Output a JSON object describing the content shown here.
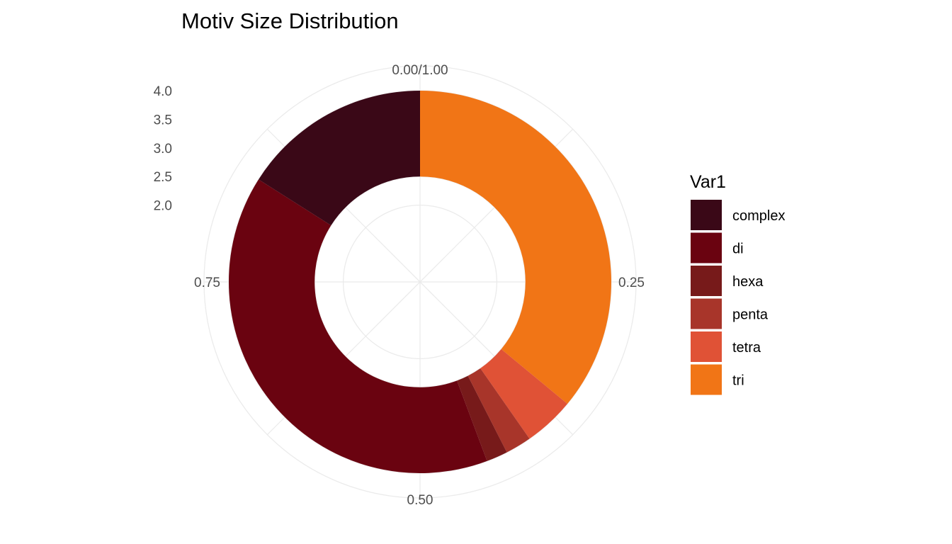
{
  "chart_data": {
    "type": "pie",
    "subtype": "donut",
    "title": "Motiv Size Distribution",
    "legend": {
      "title": "Var1",
      "position": "right"
    },
    "theta_axis": {
      "ticks": [
        0,
        0.25,
        0.5,
        0.75
      ],
      "labels": [
        "0.00/1.00",
        "0.25",
        "0.50",
        "0.75"
      ]
    },
    "radial_axis": {
      "ticks": [
        2.0,
        2.5,
        3.0,
        3.5,
        4.0
      ],
      "labels": [
        "2.0",
        "2.5",
        "3.0",
        "3.5",
        "4.0"
      ],
      "range": [
        1.5,
        4.0
      ]
    },
    "bar_range": [
      2.5,
      4.0
    ],
    "grid": true,
    "stack_order": [
      "tri",
      "tetra",
      "penta",
      "hexa",
      "di",
      "complex"
    ],
    "slices": [
      {
        "label": "complex",
        "value": 0.16,
        "color": "#3a0817"
      },
      {
        "label": "di",
        "value": 0.397,
        "color": "#6a0310"
      },
      {
        "label": "hexa",
        "value": 0.018,
        "color": "#771a1a"
      },
      {
        "label": "penta",
        "value": 0.022,
        "color": "#a8352a"
      },
      {
        "label": "tetra",
        "value": 0.043,
        "color": "#e05236"
      },
      {
        "label": "tri",
        "value": 0.36,
        "color": "#f17516"
      }
    ]
  }
}
